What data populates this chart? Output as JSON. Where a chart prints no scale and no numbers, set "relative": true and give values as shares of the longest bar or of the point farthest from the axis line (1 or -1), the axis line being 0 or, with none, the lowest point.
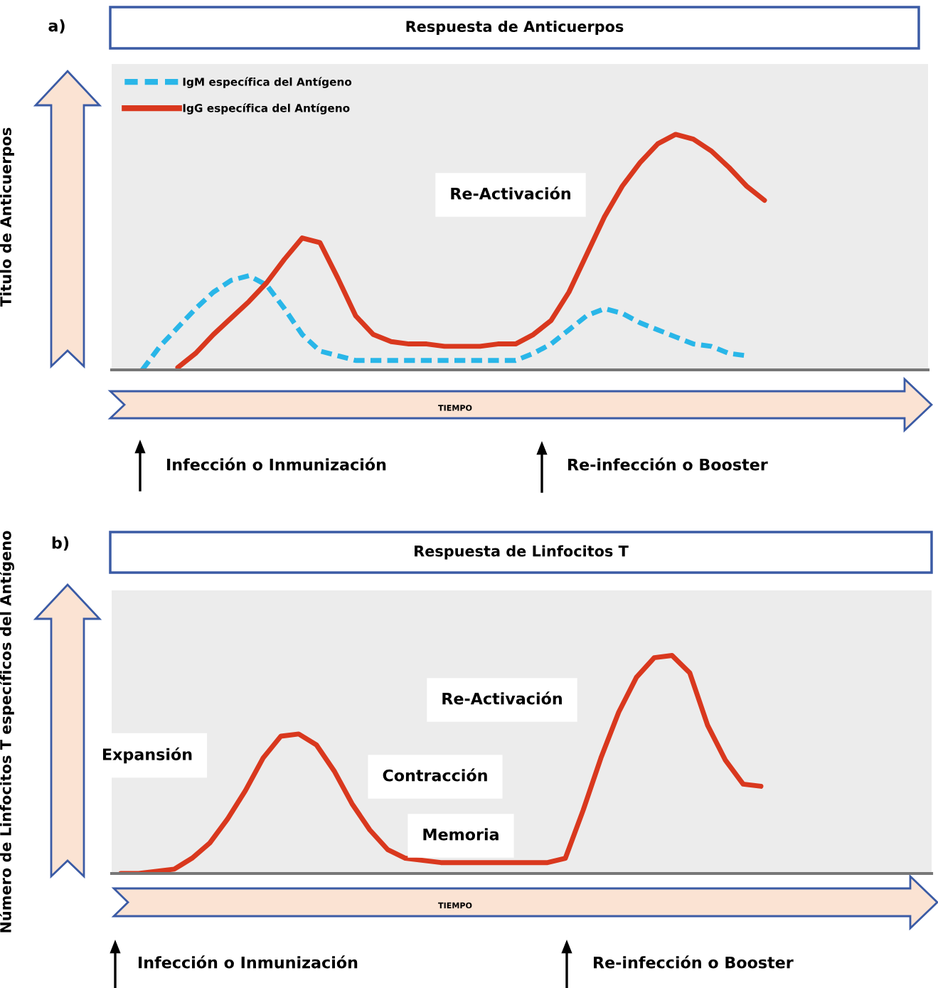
{
  "chart_data": [
    {
      "type": "line",
      "title": "Respuesta de Anticuerpos",
      "xlabel": "TIEMPO",
      "ylabel": "Titulo de Anticuerpos",
      "relative": true,
      "legend": "top left",
      "categories": [
        null,
        null,
        null,
        null,
        null,
        null,
        null,
        null,
        null,
        null,
        null,
        null,
        null,
        null,
        null,
        null,
        null,
        null,
        null,
        null,
        null,
        null,
        null,
        null,
        null,
        null,
        null,
        null,
        null,
        null,
        null,
        null,
        null,
        null,
        null,
        null
      ],
      "series": [
        {
          "name": "IgM específica del Antígeno",
          "color": "#29b6e8",
          "line_style": "dashed",
          "values": [
            0,
            0.1,
            0.18,
            0.26,
            0.33,
            0.38,
            0.4,
            0.36,
            0.26,
            0.15,
            0.08,
            0.06,
            0.04,
            0.04,
            0.04,
            0.04,
            0.04,
            0.04,
            0.04,
            0.04,
            0.04,
            0.04,
            0.07,
            0.11,
            0.17,
            0.23,
            0.26,
            0.24,
            0.2,
            0.17,
            0.14,
            0.11,
            0.1,
            0.07,
            0.06,
            null
          ]
        },
        {
          "name": "IgG específica del Antígeno",
          "color": "#d9381e",
          "line_style": "solid",
          "values": [
            null,
            null,
            0.01,
            0.07,
            0.15,
            0.22,
            0.29,
            0.37,
            0.47,
            0.56,
            0.54,
            0.39,
            0.23,
            0.15,
            0.12,
            0.11,
            0.11,
            0.1,
            0.1,
            0.1,
            0.11,
            0.11,
            0.15,
            0.21,
            0.33,
            0.49,
            0.65,
            0.78,
            0.88,
            0.96,
            1.0,
            0.98,
            0.93,
            0.86,
            0.78,
            0.72
          ]
        }
      ],
      "annotations": [
        "a)",
        "Re-Activación",
        "Infección o Inmunización",
        "Re-infección o Booster"
      ]
    },
    {
      "type": "line",
      "title": "Respuesta de Linfocitos T",
      "xlabel": "TIEMPO",
      "ylabel": "Número de Linfocitos T específicos del Antígeno",
      "relative": true,
      "categories": [
        null,
        null,
        null,
        null,
        null,
        null,
        null,
        null,
        null,
        null,
        null,
        null,
        null,
        null,
        null,
        null,
        null,
        null,
        null,
        null,
        null,
        null,
        null,
        null,
        null,
        null,
        null,
        null,
        null,
        null,
        null,
        null,
        null,
        null,
        null,
        null,
        null
      ],
      "series": [
        {
          "color": "#d9381e",
          "line_style": "solid",
          "values": [
            0,
            0,
            0.01,
            0.02,
            0.07,
            0.14,
            0.25,
            0.38,
            0.53,
            0.63,
            0.64,
            0.59,
            0.47,
            0.32,
            0.2,
            0.11,
            0.07,
            0.06,
            0.05,
            0.05,
            0.05,
            0.05,
            0.05,
            0.05,
            0.05,
            0.07,
            0.29,
            0.53,
            0.74,
            0.9,
            0.99,
            1.0,
            0.92,
            0.68,
            0.52,
            0.41,
            0.4
          ]
        }
      ],
      "annotations": [
        "b)",
        "Expansión",
        "Contracción",
        "Re-Activación",
        "Memoria",
        "Infección o Inmunización",
        "Re-infección o Booster"
      ]
    }
  ]
}
